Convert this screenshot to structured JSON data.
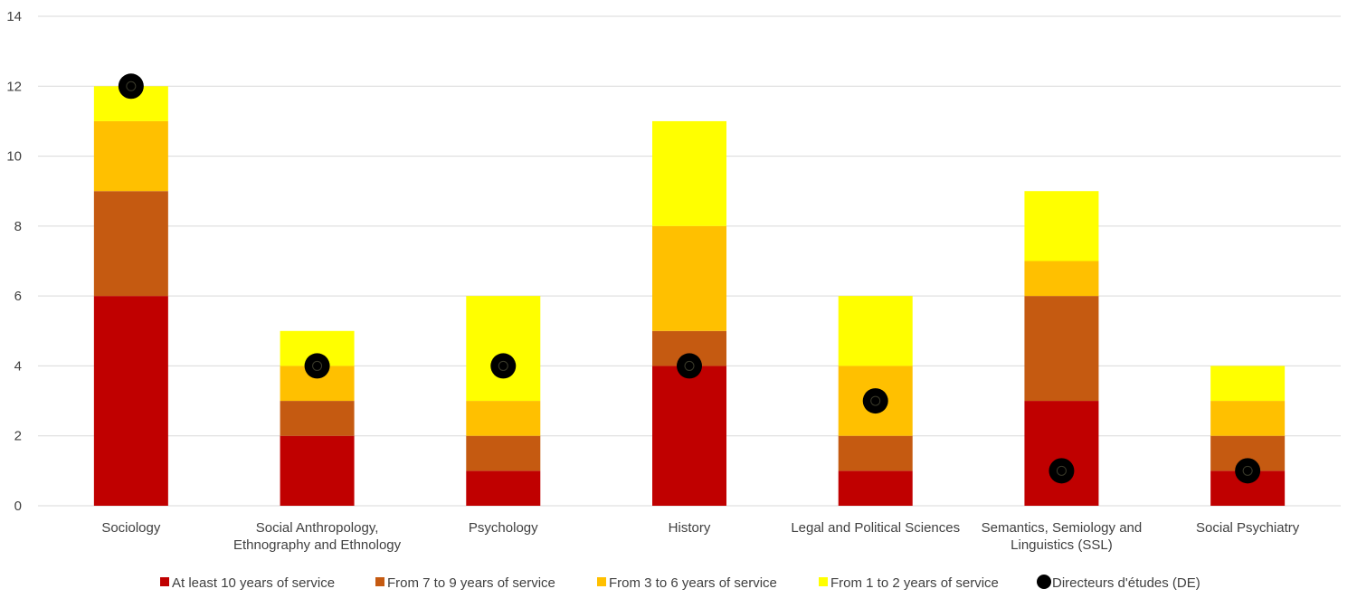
{
  "chart_data": {
    "type": "bar",
    "stacked": true,
    "title": "",
    "xlabel": "",
    "ylabel": "",
    "ylim": [
      0,
      14
    ],
    "yticks": [
      0,
      2,
      4,
      6,
      8,
      10,
      12,
      14
    ],
    "grid": true,
    "legend_position": "bottom",
    "categories": [
      [
        "Sociology"
      ],
      [
        "Social Anthropology,",
        "Ethnography and Ethnology"
      ],
      [
        "Psychology"
      ],
      [
        "History"
      ],
      [
        "Legal and Political Sciences"
      ],
      [
        "Semantics, Semiology and",
        "Linguistics (SSL)"
      ],
      [
        "Social Psychiatry"
      ]
    ],
    "series": [
      {
        "name": "At least 10 years of service",
        "color": "#C00000",
        "values": [
          6,
          2,
          1,
          4,
          1,
          3,
          1
        ]
      },
      {
        "name": "From 7 to 9 years of service",
        "color": "#C55A11",
        "values": [
          3,
          1,
          1,
          1,
          1,
          3,
          1
        ]
      },
      {
        "name": "From 3 to 6 years of service",
        "color": "#FFC000",
        "values": [
          2,
          1,
          1,
          3,
          2,
          1,
          1
        ]
      },
      {
        "name": "From 1 to 2 years of service",
        "color": "#FFFF00",
        "values": [
          1,
          1,
          3,
          3,
          2,
          2,
          1
        ]
      }
    ],
    "markers": {
      "name": "Directeurs d'études (DE)",
      "color": "#000000",
      "values": [
        12,
        4,
        4,
        4,
        3,
        1,
        1
      ]
    }
  }
}
